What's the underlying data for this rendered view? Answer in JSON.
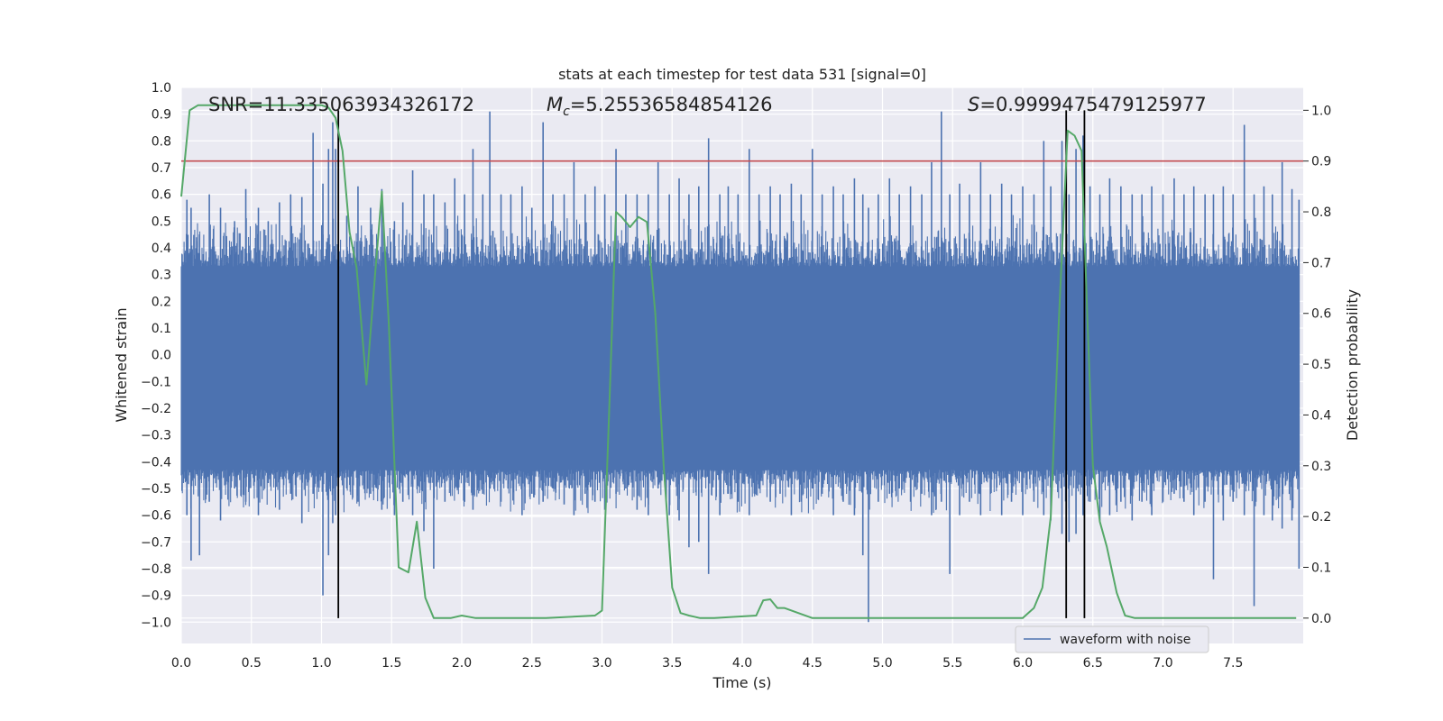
{
  "chart_data": {
    "type": "line",
    "title": "stats at each timestep for test data 531 [signal=0]",
    "xlabel": "Time (s)",
    "ylabel": "Whitened strain",
    "y2label": "Detection probability",
    "xlim": [
      0,
      8
    ],
    "ylim": [
      -1.08,
      1.0
    ],
    "y2lim": [
      -0.05,
      1.045
    ],
    "x_ticks": [
      "0.0",
      "0.5",
      "1.0",
      "1.5",
      "2.0",
      "2.5",
      "3.0",
      "3.5",
      "4.0",
      "4.5",
      "5.0",
      "5.5",
      "6.0",
      "6.5",
      "7.0",
      "7.5"
    ],
    "y_ticks": [
      "1.0",
      "0.9",
      "0.8",
      "0.7",
      "0.6",
      "0.5",
      "0.4",
      "0.3",
      "0.2",
      "0.1",
      "0.0",
      "−0.1",
      "−0.2",
      "−0.3",
      "−0.4",
      "−0.5",
      "−0.6",
      "−0.7",
      "−0.8",
      "−0.9",
      "−1.0"
    ],
    "y2_ticks": [
      "1.0",
      "0.9",
      "0.8",
      "0.7",
      "0.6",
      "0.5",
      "0.4",
      "0.3",
      "0.2",
      "0.1",
      "0.0"
    ],
    "grid": true,
    "legend_position": "lower-right",
    "annotations": {
      "snr": "SNR=11.335063934326172",
      "mc_symbol": "M",
      "mc_sub": "c",
      "mc_value": "=5.25536584854126",
      "s_symbol": "S",
      "s_value": "=0.9999475479125977"
    },
    "series": [
      {
        "name": "waveform with noise",
        "axis": "left",
        "color": "#4c72b0",
        "typical_band": [
          -0.43,
          0.33
        ],
        "peaks": [
          [
            0.04,
            0.58,
            -0.6
          ],
          [
            0.07,
            0.55,
            -0.77
          ],
          [
            0.13,
            0.45,
            -0.75
          ],
          [
            0.2,
            0.6,
            -0.55
          ],
          [
            0.28,
            0.55,
            -0.62
          ],
          [
            0.38,
            0.5,
            -0.5
          ],
          [
            0.46,
            0.62,
            -0.55
          ],
          [
            0.55,
            0.55,
            -0.6
          ],
          [
            0.62,
            0.5,
            -0.48
          ],
          [
            0.7,
            0.57,
            -0.58
          ],
          [
            0.78,
            0.6,
            -0.52
          ],
          [
            0.86,
            0.59,
            -0.63
          ],
          [
            0.94,
            0.83,
            -0.52
          ],
          [
            1.01,
            0.64,
            -0.9
          ],
          [
            1.05,
            0.77,
            -0.75
          ],
          [
            1.08,
            0.87,
            -0.63
          ],
          [
            1.1,
            0.77,
            -0.6
          ],
          [
            1.18,
            0.52,
            -0.5
          ],
          [
            1.26,
            0.63,
            -0.55
          ],
          [
            1.35,
            0.55,
            -0.52
          ],
          [
            1.43,
            0.62,
            -0.58
          ],
          [
            1.52,
            0.5,
            -0.6
          ],
          [
            1.58,
            0.57,
            -0.55
          ],
          [
            1.65,
            0.69,
            -0.6
          ],
          [
            1.73,
            0.6,
            -0.66
          ],
          [
            1.8,
            0.6,
            -0.8
          ],
          [
            1.88,
            0.57,
            -0.55
          ],
          [
            1.95,
            0.66,
            -0.5
          ],
          [
            2.02,
            0.6,
            -0.55
          ],
          [
            2.08,
            0.77,
            -0.58
          ],
          [
            2.15,
            0.6,
            -0.52
          ],
          [
            2.2,
            0.91,
            -0.5
          ],
          [
            2.28,
            0.6,
            -0.55
          ],
          [
            2.35,
            0.6,
            -0.5
          ],
          [
            2.43,
            0.63,
            -0.6
          ],
          [
            2.5,
            0.55,
            -0.52
          ],
          [
            2.58,
            0.87,
            -0.55
          ],
          [
            2.65,
            0.6,
            -0.5
          ],
          [
            2.73,
            0.6,
            -0.56
          ],
          [
            2.8,
            0.72,
            -0.6
          ],
          [
            2.88,
            0.6,
            -0.52
          ],
          [
            2.95,
            0.63,
            -0.55
          ],
          [
            3.02,
            0.6,
            -0.58
          ],
          [
            3.1,
            0.77,
            -0.52
          ],
          [
            3.17,
            0.6,
            -0.5
          ],
          [
            3.25,
            0.6,
            -0.58
          ],
          [
            3.33,
            0.6,
            -0.6
          ],
          [
            3.4,
            0.72,
            -0.5
          ],
          [
            3.48,
            0.6,
            -0.6
          ],
          [
            3.55,
            0.66,
            -0.62
          ],
          [
            3.62,
            0.6,
            -0.72
          ],
          [
            3.69,
            0.63,
            -0.7
          ],
          [
            3.76,
            0.81,
            -0.82
          ],
          [
            3.84,
            0.6,
            -0.6
          ],
          [
            3.9,
            0.63,
            -0.52
          ],
          [
            3.97,
            0.6,
            -0.55
          ],
          [
            4.05,
            0.77,
            -0.6
          ],
          [
            4.12,
            0.6,
            -0.5
          ],
          [
            4.2,
            0.63,
            -0.55
          ],
          [
            4.27,
            0.6,
            -0.52
          ],
          [
            4.35,
            0.64,
            -0.6
          ],
          [
            4.42,
            0.6,
            -0.55
          ],
          [
            4.5,
            0.77,
            -0.5
          ],
          [
            4.57,
            0.6,
            -0.52
          ],
          [
            4.65,
            0.63,
            -0.6
          ],
          [
            4.72,
            0.6,
            -0.55
          ],
          [
            4.8,
            0.66,
            -0.6
          ],
          [
            4.86,
            0.6,
            -0.75
          ],
          [
            4.9,
            0.55,
            -1.0
          ],
          [
            4.97,
            0.6,
            -0.55
          ],
          [
            5.05,
            0.66,
            -0.52
          ],
          [
            5.12,
            0.6,
            -0.5
          ],
          [
            5.2,
            0.63,
            -0.55
          ],
          [
            5.28,
            0.6,
            -0.52
          ],
          [
            5.35,
            0.72,
            -0.6
          ],
          [
            5.42,
            0.91,
            -0.55
          ],
          [
            5.48,
            0.6,
            -0.82
          ],
          [
            5.55,
            0.64,
            -0.6
          ],
          [
            5.62,
            0.6,
            -0.55
          ],
          [
            5.7,
            0.72,
            -0.6
          ],
          [
            5.77,
            0.6,
            -0.52
          ],
          [
            5.85,
            0.64,
            -0.6
          ],
          [
            5.92,
            0.6,
            -0.55
          ],
          [
            6.0,
            0.63,
            -0.6
          ],
          [
            6.08,
            0.6,
            -0.55
          ],
          [
            6.15,
            0.8,
            -0.6
          ],
          [
            6.2,
            0.63,
            -0.62
          ],
          [
            6.28,
            0.8,
            -0.67
          ],
          [
            6.33,
            0.6,
            -0.7
          ],
          [
            6.38,
            0.77,
            -0.67
          ],
          [
            6.43,
            0.82,
            -0.6
          ],
          [
            6.48,
            0.63,
            -0.55
          ],
          [
            6.55,
            0.6,
            -0.62
          ],
          [
            6.62,
            0.66,
            -0.6
          ],
          [
            6.7,
            0.63,
            -0.55
          ],
          [
            6.78,
            0.6,
            -0.62
          ],
          [
            6.85,
            0.6,
            -0.55
          ],
          [
            6.92,
            0.63,
            -0.6
          ],
          [
            7.0,
            0.6,
            -0.55
          ],
          [
            7.08,
            0.66,
            -0.52
          ],
          [
            7.15,
            0.6,
            -0.55
          ],
          [
            7.22,
            0.63,
            -0.6
          ],
          [
            7.3,
            0.6,
            -0.55
          ],
          [
            7.36,
            0.6,
            -0.84
          ],
          [
            7.43,
            0.63,
            -0.62
          ],
          [
            7.5,
            0.6,
            -0.55
          ],
          [
            7.58,
            0.86,
            -0.6
          ],
          [
            7.65,
            0.6,
            -0.94
          ],
          [
            7.72,
            0.63,
            -0.6
          ],
          [
            7.78,
            0.6,
            -0.62
          ],
          [
            7.85,
            0.72,
            -0.65
          ],
          [
            7.92,
            0.62,
            -0.62
          ],
          [
            7.97,
            0.58,
            -0.8
          ]
        ]
      },
      {
        "name": "",
        "axis": "right",
        "color": "#55a868",
        "x": [
          0.0,
          0.06,
          0.12,
          0.2,
          0.4,
          0.6,
          0.8,
          1.0,
          1.05,
          1.1,
          1.15,
          1.2,
          1.25,
          1.32,
          1.38,
          1.43,
          1.48,
          1.55,
          1.62,
          1.68,
          1.74,
          1.8,
          1.85,
          1.92,
          2.0,
          2.1,
          2.3,
          2.6,
          2.95,
          3.0,
          3.05,
          3.1,
          3.14,
          3.2,
          3.26,
          3.32,
          3.38,
          3.44,
          3.5,
          3.56,
          3.62,
          3.7,
          3.8,
          4.1,
          4.15,
          4.2,
          4.25,
          4.3,
          4.4,
          4.5,
          4.6,
          4.8,
          5.0,
          5.4,
          5.8,
          6.0,
          6.08,
          6.14,
          6.2,
          6.26,
          6.32,
          6.37,
          6.42,
          6.46,
          6.5,
          6.55,
          6.6,
          6.67,
          6.73,
          6.8,
          7.0,
          7.5,
          7.95
        ],
        "y": [
          0.83,
          1.0,
          1.01,
          1.01,
          1.01,
          1.01,
          1.01,
          1.01,
          1.005,
          0.985,
          0.92,
          0.76,
          0.69,
          0.46,
          0.67,
          0.84,
          0.58,
          0.1,
          0.09,
          0.19,
          0.04,
          0.0,
          0.0,
          0.0,
          0.005,
          0.0,
          0.0,
          0.0,
          0.005,
          0.015,
          0.4,
          0.8,
          0.79,
          0.77,
          0.79,
          0.78,
          0.6,
          0.3,
          0.06,
          0.01,
          0.005,
          0.0,
          0.0,
          0.005,
          0.035,
          0.037,
          0.02,
          0.02,
          0.01,
          0.0,
          0.0,
          0.0,
          0.0,
          0.0,
          0.0,
          0.0,
          0.02,
          0.06,
          0.2,
          0.6,
          0.96,
          0.95,
          0.92,
          0.6,
          0.3,
          0.19,
          0.14,
          0.05,
          0.005,
          0.0,
          0.0,
          0.0,
          0.0
        ]
      }
    ],
    "threshold_right": 0.9,
    "threshold_color": "#c44e52",
    "vertical_lines": [
      1.12,
      6.31,
      6.44
    ]
  }
}
